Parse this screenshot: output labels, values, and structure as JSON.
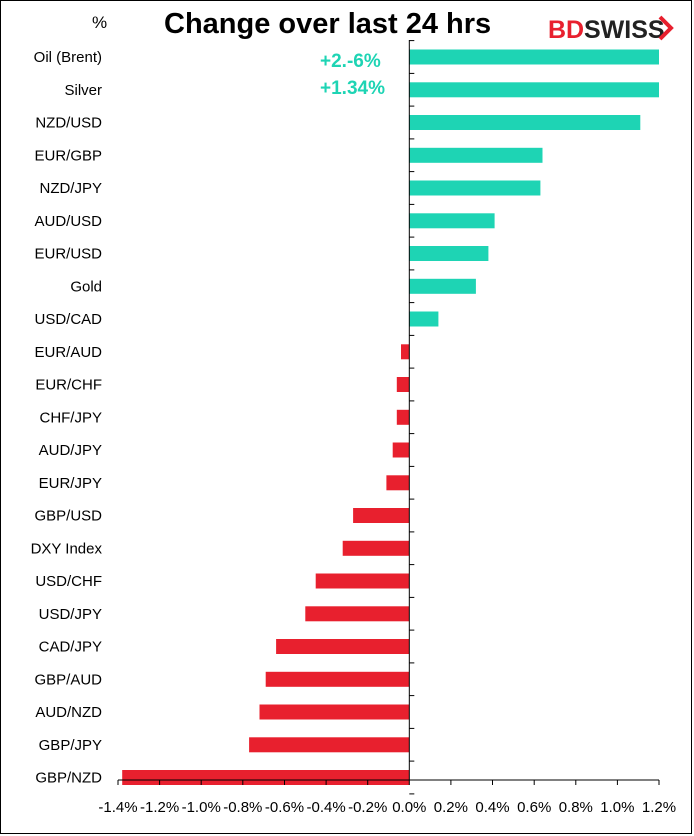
{
  "chart_data": {
    "type": "bar",
    "orientation": "horizontal",
    "title": "Change over last 24 hrs",
    "unit_label": "%",
    "brand": {
      "bd": "BD",
      "swiss": "SWISS"
    },
    "colors": {
      "positive": "#1ed4b4",
      "negative": "#e8202e",
      "annotation": "#1ed4b4",
      "brand": "#e8202e"
    },
    "annotations": [
      "+2.-6%",
      "+1.34%"
    ],
    "categories": [
      "Oil (Brent)",
      "Silver",
      "NZD/USD",
      "EUR/GBP",
      "NZD/JPY",
      "AUD/USD",
      "EUR/USD",
      "Gold",
      "USD/CAD",
      "EUR/AUD",
      "EUR/CHF",
      "CHF/JPY",
      "AUD/JPY",
      "EUR/JPY",
      "GBP/USD",
      "DXY Index",
      "USD/CHF",
      "USD/JPY",
      "CAD/JPY",
      "GBP/AUD",
      "AUD/NZD",
      "GBP/JPY",
      "GBP/NZD"
    ],
    "values": [
      1.2,
      1.2,
      1.11,
      0.64,
      0.63,
      0.41,
      0.38,
      0.32,
      0.14,
      -0.04,
      -0.06,
      -0.06,
      -0.08,
      -0.11,
      -0.27,
      -0.32,
      -0.45,
      -0.5,
      -0.64,
      -0.69,
      -0.72,
      -0.77,
      -1.38
    ],
    "xlim": [
      -1.4,
      1.2
    ],
    "xticks": [
      -1.4,
      -1.2,
      -1.0,
      -0.8,
      -0.6,
      -0.4,
      -0.2,
      0.0,
      0.2,
      0.4,
      0.6,
      0.8,
      1.0,
      1.2
    ],
    "xtick_labels": [
      "-1.4%",
      "-1.2%",
      "-1.0%",
      "-0.8%",
      "-0.6%",
      "-0.4%",
      "-0.2%",
      "0.0%",
      "0.2%",
      "0.4%",
      "0.6%",
      "0.8%",
      "1.0%",
      "1.2%"
    ]
  }
}
